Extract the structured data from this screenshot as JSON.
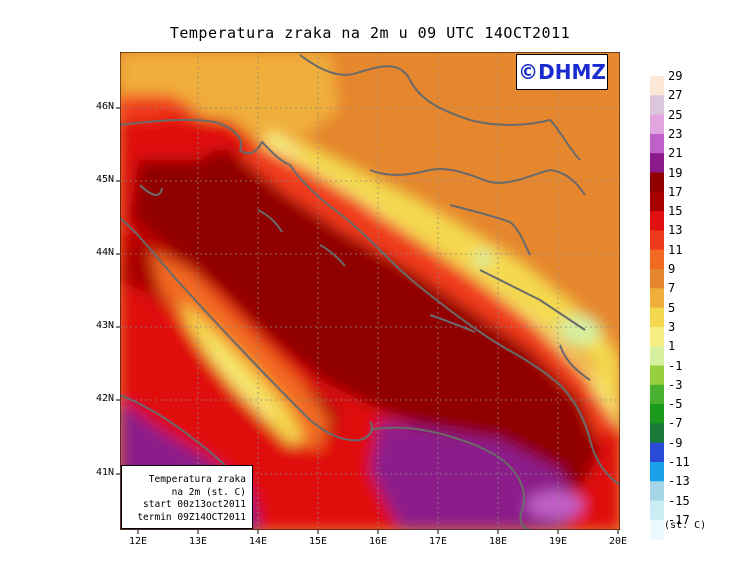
{
  "title": "Temperatura zraka na 2m u 09 UTC 14OCT2011",
  "copyright": "©DHMZ",
  "info_box": {
    "lines": [
      "Temperatura zraka",
      "na 2m (st. C)",
      "start 00z13oct2011",
      "termin 09Z14OCT2011"
    ]
  },
  "lat_labels": [
    "46N",
    "45N",
    "44N",
    "43N",
    "42N",
    "41N"
  ],
  "lon_labels": [
    "12E",
    "13E",
    "14E",
    "15E",
    "16E",
    "17E",
    "18E",
    "19E",
    "20E"
  ],
  "legend": {
    "unit": "(st. C)",
    "labels": [
      "29",
      "27",
      "25",
      "23",
      "21",
      "19",
      "17",
      "15",
      "13",
      "11",
      "9",
      "7",
      "5",
      "3",
      "1",
      "-1",
      "-3",
      "-5",
      "-7",
      "-9",
      "-11",
      "-13",
      "-15",
      "-17"
    ],
    "colors": [
      "#fde8d8",
      "#dcc6dc",
      "#e2a5e0",
      "#c160c8",
      "#8c1a8a",
      "#900000",
      "#a80000",
      "#e01010",
      "#f03a1e",
      "#f26a22",
      "#e6862d",
      "#f0ae3a",
      "#f4d84e",
      "#f6ee80",
      "#d6f0a0",
      "#96d040",
      "#4ab030",
      "#1a9a1a",
      "#1a7a3a",
      "#2a4ad8",
      "#1aa0e8",
      "#a6d6e6",
      "#c8eef4",
      "#eafaff"
    ]
  }
}
